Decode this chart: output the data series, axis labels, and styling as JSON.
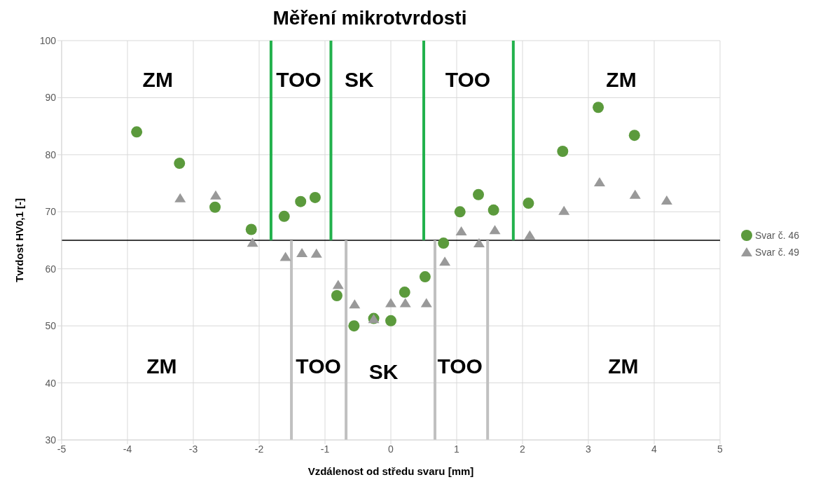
{
  "chart_data": {
    "type": "scatter",
    "title": "Měření mikrotvrdosti",
    "xlabel": "Vzdálenost od středu svaru [mm]",
    "ylabel": "Tvrdost HV0,1 [-]",
    "xlim": [
      -5,
      5
    ],
    "xticks": [
      -5,
      -4,
      -3,
      -2,
      -1,
      0,
      1,
      2,
      3,
      4,
      5
    ],
    "ylim": [
      30,
      100
    ],
    "yticks": [
      30,
      40,
      50,
      60,
      70,
      80,
      90,
      100
    ],
    "grid": true,
    "legend": "right",
    "series": [
      {
        "name": "Svar č. 46",
        "color": "#5b9a3c",
        "marker": "circle",
        "x": [
          -3.86,
          -3.21,
          -2.67,
          -2.12,
          -1.62,
          -1.37,
          -1.15,
          -0.82,
          -0.56,
          -0.26,
          0,
          0.21,
          0.52,
          0.8,
          1.05,
          1.33,
          1.56,
          2.09,
          2.61,
          3.15,
          3.7
        ],
        "values": [
          84.0,
          78.5,
          70.8,
          66.9,
          69.2,
          71.8,
          72.5,
          55.3,
          50.0,
          51.3,
          50.9,
          55.9,
          58.6,
          64.5,
          70.0,
          73.0,
          70.3,
          71.5,
          80.6,
          88.3,
          83.4
        ]
      },
      {
        "name": "Svar č. 49",
        "color": "#999999",
        "marker": "triangle",
        "x": [
          -3.2,
          -2.66,
          -2.1,
          -1.6,
          -1.35,
          -1.13,
          -0.8,
          -0.55,
          -0.26,
          0,
          0.22,
          0.54,
          0.82,
          1.07,
          1.34,
          1.58,
          2.11,
          2.63,
          3.17,
          3.71,
          4.19
        ],
        "values": [
          72.4,
          72.9,
          64.6,
          62.1,
          62.8,
          62.7,
          57.2,
          53.8,
          51.2,
          54.0,
          54.0,
          54.0,
          61.3,
          66.6,
          64.5,
          66.8,
          65.9,
          70.2,
          75.2,
          73.0,
          72.0
        ]
      },
      {
        "type": "line",
        "color": "#22b14c",
        "x": [
          -1.82,
          -1.82
        ],
        "values": [
          65,
          100
        ]
      },
      {
        "type": "line",
        "color": "#22b14c",
        "x": [
          -0.91,
          -0.91
        ],
        "values": [
          65,
          100
        ]
      },
      {
        "type": "line",
        "color": "#22b14c",
        "x": [
          0.5,
          0.5
        ],
        "values": [
          65,
          100
        ]
      },
      {
        "type": "line",
        "color": "#22b14c",
        "x": [
          1.86,
          1.86
        ],
        "values": [
          65,
          100
        ]
      },
      {
        "type": "line",
        "color": "#c0c0c0",
        "x": [
          -1.51,
          -1.51
        ],
        "values": [
          30,
          65
        ]
      },
      {
        "type": "line",
        "color": "#c0c0c0",
        "x": [
          -0.68,
          -0.68
        ],
        "values": [
          30,
          65
        ]
      },
      {
        "type": "line",
        "color": "#c0c0c0",
        "x": [
          0.67,
          0.67
        ],
        "values": [
          30,
          65
        ]
      },
      {
        "type": "line",
        "color": "#c0c0c0",
        "x": [
          1.47,
          1.47
        ],
        "values": [
          30,
          65
        ]
      }
    ],
    "ref_lines": [
      {
        "axis": "y",
        "value": 65,
        "color": "#000000"
      }
    ],
    "annotations": [
      "ZM",
      "TOO",
      "SK",
      "TOO",
      "ZM",
      "ZM",
      "TOO",
      "SK",
      "TOO",
      "ZM"
    ]
  }
}
